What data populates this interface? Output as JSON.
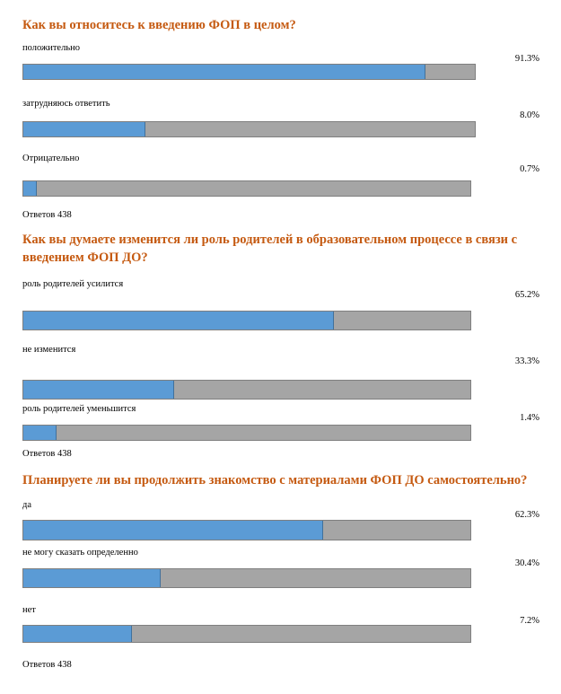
{
  "colors": {
    "title": "#c55a11",
    "bar_fill": "#5b9bd5",
    "bar_track": "#a5a5a5"
  },
  "chart_data": [
    {
      "type": "bar",
      "title": "Как вы относитесь к введению ФОП в целом?",
      "categories": [
        "положительно",
        "затрудняюсь ответить",
        "Отрицательно"
      ],
      "values": [
        91.3,
        8.0,
        0.7
      ],
      "value_labels": [
        "91.3%",
        "8.0%",
        "0.7%"
      ],
      "fill_fraction": [
        0.89,
        0.27,
        0.03
      ],
      "answers": "Ответов 438"
    },
    {
      "type": "bar",
      "title": "Как вы думаете изменится ли роль родителей в образовательном процессе в связи с введением ФОП ДО?",
      "categories": [
        "роль родителей усилится",
        "не изменится",
        "роль родителей уменьшится"
      ],
      "values": [
        65.2,
        33.3,
        1.4
      ],
      "value_labels": [
        "65.2%",
        "33.3%",
        "1.4%"
      ],
      "fill_fraction": [
        0.694,
        0.337,
        0.074
      ],
      "answers": "Ответов 438"
    },
    {
      "type": "bar",
      "title": "Планируете ли вы продолжить знакомство с материалами ФОП ДО самостоятельно?",
      "categories": [
        "да",
        "не могу сказать определенно",
        "нет"
      ],
      "values": [
        62.3,
        30.4,
        7.2
      ],
      "value_labels": [
        "62.3%",
        "30.4%",
        "7.2%"
      ],
      "fill_fraction": [
        0.67,
        0.307,
        0.242
      ],
      "answers": "Ответов 438"
    }
  ]
}
